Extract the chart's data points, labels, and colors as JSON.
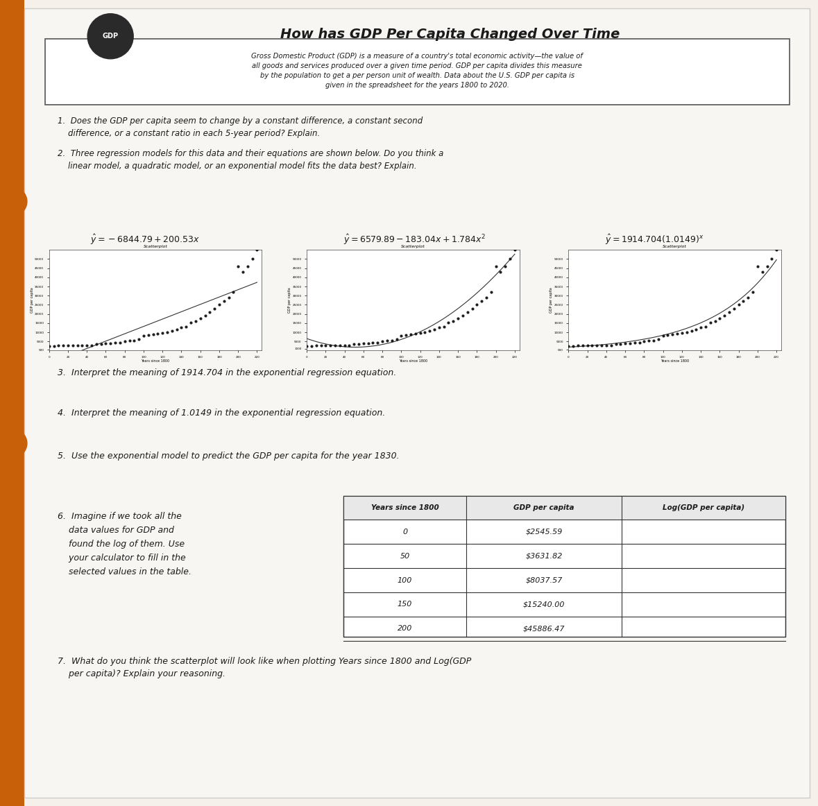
{
  "title": "How has GDP Per Capita Changed Over Time",
  "gdp_icon_label": "GDP",
  "intro_text": "Gross Domestic Product (GDP) is a measure of a country's total economic activity—the value of\nall goods and services produced over a given time period. GDP per capita divides this measure\nby the population to get a per person unit of wealth. Data about the U.S. GDP per capita is\ngiven in the spreadsheet for the years 1800 to 2020.",
  "q1": "1.  Does the GDP per capita seem to change by a constant difference, a constant second\n    difference, or a constant ratio in each 5-year period? Explain.",
  "q2": "2.  Three regression models for this data and their equations are shown below. Do you think a\n    linear model, a quadratic model, or an exponential model fits the data best? Explain.",
  "eq_linear": "$\\hat{y} = -6844.79 + 200.53x$",
  "eq_quadratic": "$\\hat{y} = 6579.89 - 183.04x + 1.784x^2$",
  "eq_exponential": "$\\hat{y} = 1914.704(1.0149)^x$",
  "label_scatterplot": "Scatterplot",
  "q3": "3.  Interpret the meaning of 1914.704 in the exponential regression equation.",
  "q4": "4.  Interpret the meaning of 1.0149 in the exponential regression equation.",
  "q5": "5.  Use the exponential model to predict the GDP per capita for the year 1830.",
  "q6_text": "6.  Imagine if we took all the\n    data values for GDP and\n    found the log of them. Use\n    your calculator to fill in the\n    selected values in the table.",
  "table_headers": [
    "Years since 1800",
    "GDP per capita",
    "Log(GDP per capita)"
  ],
  "table_rows": [
    [
      "0",
      "$2545.59",
      ""
    ],
    [
      "50",
      "$3631.82",
      ""
    ],
    [
      "100",
      "$8037.57",
      ""
    ],
    [
      "150",
      "$15240.00",
      ""
    ],
    [
      "200",
      "$45886.47",
      ""
    ]
  ],
  "q7": "7.  What do you think the scatterplot will look like when plotting Years since 1800 and Log(GDP\n    per capita)? Explain your reasoning.",
  "bg_color": "#f5f0ea",
  "paper_color": "#f8f6f2",
  "orange_color": "#c8600a",
  "text_color": "#1a1a1a",
  "line_color": "#444444"
}
